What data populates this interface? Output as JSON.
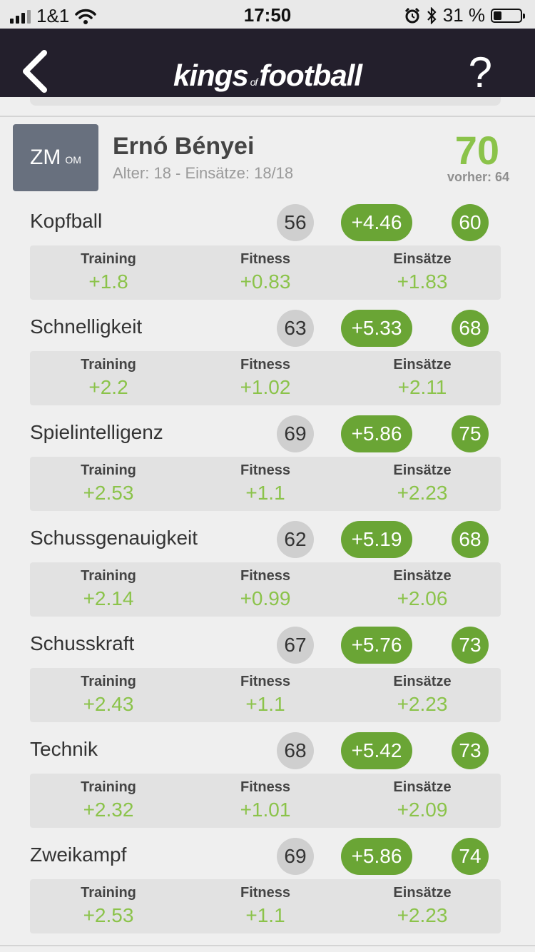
{
  "status_bar": {
    "carrier": "1&1",
    "time": "17:50",
    "battery_percent": "31 %",
    "battery_level": 0.31
  },
  "header": {
    "logo_main1": "kings",
    "logo_of": "of",
    "logo_main2": "football",
    "help": "?"
  },
  "player": {
    "position": "ZM",
    "position_secondary": "OM",
    "name": "Ernó Bényei",
    "meta": "Alter: 18 - Einsätze: 18/18",
    "rating": "70",
    "previous": "vorher: 64"
  },
  "labels": {
    "training": "Training",
    "fitness": "Fitness",
    "einsaetze": "Einsätze"
  },
  "skills": [
    {
      "name": "Kopfball",
      "base": "56",
      "delta": "+4.46",
      "new": "60",
      "training": "+1.8",
      "fitness": "+0.83",
      "einsaetze": "+1.83"
    },
    {
      "name": "Schnelligkeit",
      "base": "63",
      "delta": "+5.33",
      "new": "68",
      "training": "+2.2",
      "fitness": "+1.02",
      "einsaetze": "+2.11"
    },
    {
      "name": "Spielintelligenz",
      "base": "69",
      "delta": "+5.86",
      "new": "75",
      "training": "+2.53",
      "fitness": "+1.1",
      "einsaetze": "+2.23"
    },
    {
      "name": "Schussgenauigkeit",
      "base": "62",
      "delta": "+5.19",
      "new": "68",
      "training": "+2.14",
      "fitness": "+0.99",
      "einsaetze": "+2.06"
    },
    {
      "name": "Schusskraft",
      "base": "67",
      "delta": "+5.76",
      "new": "73",
      "training": "+2.43",
      "fitness": "+1.1",
      "einsaetze": "+2.23"
    },
    {
      "name": "Technik",
      "base": "68",
      "delta": "+5.42",
      "new": "73",
      "training": "+2.32",
      "fitness": "+1.01",
      "einsaetze": "+2.09"
    },
    {
      "name": "Zweikampf",
      "base": "69",
      "delta": "+5.86",
      "new": "74",
      "training": "+2.53",
      "fitness": "+1.1",
      "einsaetze": "+2.23"
    }
  ]
}
